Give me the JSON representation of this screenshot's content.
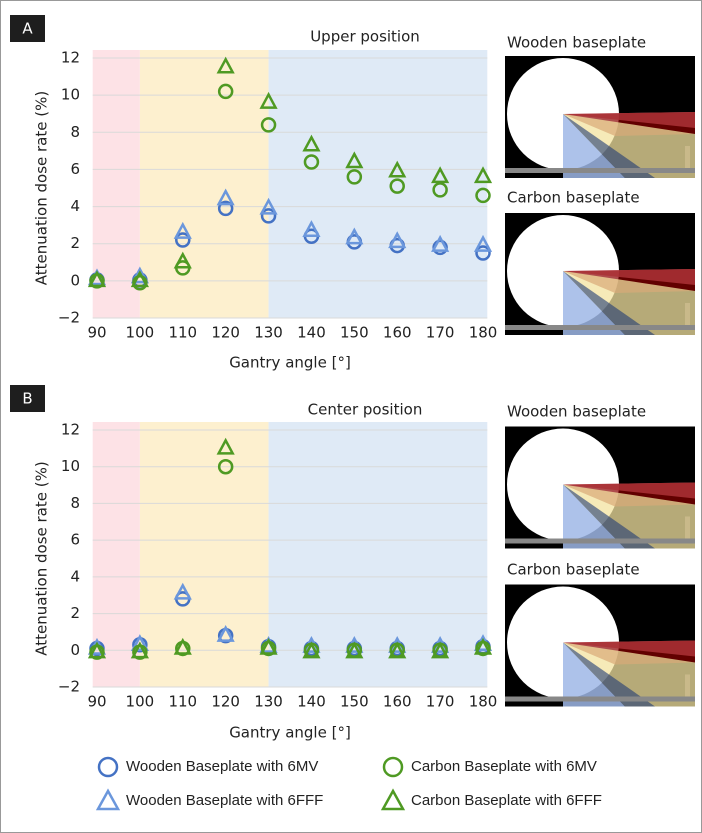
{
  "chart_data": [
    {
      "type": "scatter",
      "panel_label": "A",
      "title": "Upper position",
      "x_label": "Gantry angle [°]",
      "y_label": "Attenuation dose rate (%)",
      "x": [
        90,
        100,
        110,
        120,
        130,
        140,
        150,
        160,
        170,
        180
      ],
      "xlim": [
        89,
        181
      ],
      "xticks": [
        90,
        100,
        110,
        120,
        130,
        140,
        150,
        160,
        170,
        180
      ],
      "ylim": [
        -2,
        12
      ],
      "yticks": [
        {
          "value": -2,
          "label": "−2"
        },
        0,
        2,
        4,
        6,
        8,
        10,
        12
      ],
      "grid": true,
      "bands": [
        {
          "xlim": [
            89,
            100
          ],
          "color": "#fde2e6"
        },
        {
          "xlim": [
            100,
            130
          ],
          "color": "#fdf0cf"
        },
        {
          "xlim": [
            130,
            181
          ],
          "color": "#dfeaf6"
        }
      ],
      "series": [
        {
          "name": "Wooden Baseplate with 6MV",
          "marker": "circle",
          "color": "#4472c4",
          "values": [
            0.05,
            0.05,
            2.2,
            3.9,
            3.5,
            2.4,
            2.1,
            1.9,
            1.8,
            1.5
          ]
        },
        {
          "name": "Wooden Baseplate with 6FFF",
          "marker": "triangle",
          "color": "#6b97dc",
          "values": [
            0.1,
            0.2,
            2.6,
            4.4,
            3.9,
            2.7,
            2.3,
            2.1,
            1.9,
            1.9
          ]
        },
        {
          "name": "Carbon Baseplate with 6MV",
          "marker": "circle",
          "color": "#4f9a23",
          "values": [
            0,
            -0.1,
            0.7,
            10.2,
            8.4,
            6.4,
            5.6,
            5.1,
            4.9,
            4.6
          ]
        },
        {
          "name": "Carbon Baseplate with 6FFF",
          "marker": "triangle",
          "color": "#4f9a23",
          "values": [
            0,
            0,
            1.0,
            11.5,
            9.6,
            7.3,
            6.4,
            5.9,
            5.6,
            5.6
          ]
        }
      ],
      "image_captions": [
        "Wooden baseplate",
        "Carbon baseplate"
      ]
    },
    {
      "type": "scatter",
      "panel_label": "B",
      "title": "Center position",
      "x_label": "Gantry angle [°]",
      "y_label": "Attenuation dose rate (%)",
      "x": [
        90,
        100,
        110,
        120,
        130,
        140,
        150,
        160,
        170,
        180
      ],
      "xlim": [
        89,
        181
      ],
      "xticks": [
        90,
        100,
        110,
        120,
        130,
        140,
        150,
        160,
        170,
        180
      ],
      "ylim": [
        -2,
        12
      ],
      "yticks": [
        {
          "value": -2,
          "label": "−2"
        },
        0,
        2,
        4,
        6,
        8,
        10,
        12
      ],
      "grid": true,
      "bands": [
        {
          "xlim": [
            89,
            100
          ],
          "color": "#fde2e6"
        },
        {
          "xlim": [
            100,
            130
          ],
          "color": "#fdf0cf"
        },
        {
          "xlim": [
            130,
            181
          ],
          "color": "#dfeaf6"
        }
      ],
      "series": [
        {
          "name": "Wooden Baseplate with 6MV",
          "marker": "circle",
          "color": "#4472c4",
          "values": [
            0.1,
            0.3,
            2.8,
            0.8,
            0.2,
            0.1,
            0.1,
            0.1,
            0.1,
            0.2
          ]
        },
        {
          "name": "Wooden Baseplate with 6FFF",
          "marker": "triangle",
          "color": "#6b97dc",
          "values": [
            0.1,
            0.3,
            3.1,
            0.8,
            0.2,
            0.2,
            0.2,
            0.2,
            0.2,
            0.3
          ]
        },
        {
          "name": "Carbon Baseplate with 6MV",
          "marker": "circle",
          "color": "#4f9a23",
          "values": [
            -0.1,
            -0.1,
            0.1,
            10.0,
            0.1,
            0,
            0,
            0,
            0,
            0.1
          ]
        },
        {
          "name": "Carbon Baseplate with 6FFF",
          "marker": "triangle",
          "color": "#4f9a23",
          "values": [
            -0.1,
            -0.1,
            0.1,
            11.0,
            0.1,
            -0.1,
            -0.1,
            -0.1,
            -0.1,
            0.1
          ]
        }
      ],
      "image_captions": [
        "Wooden baseplate",
        "Carbon baseplate"
      ]
    }
  ]
}
